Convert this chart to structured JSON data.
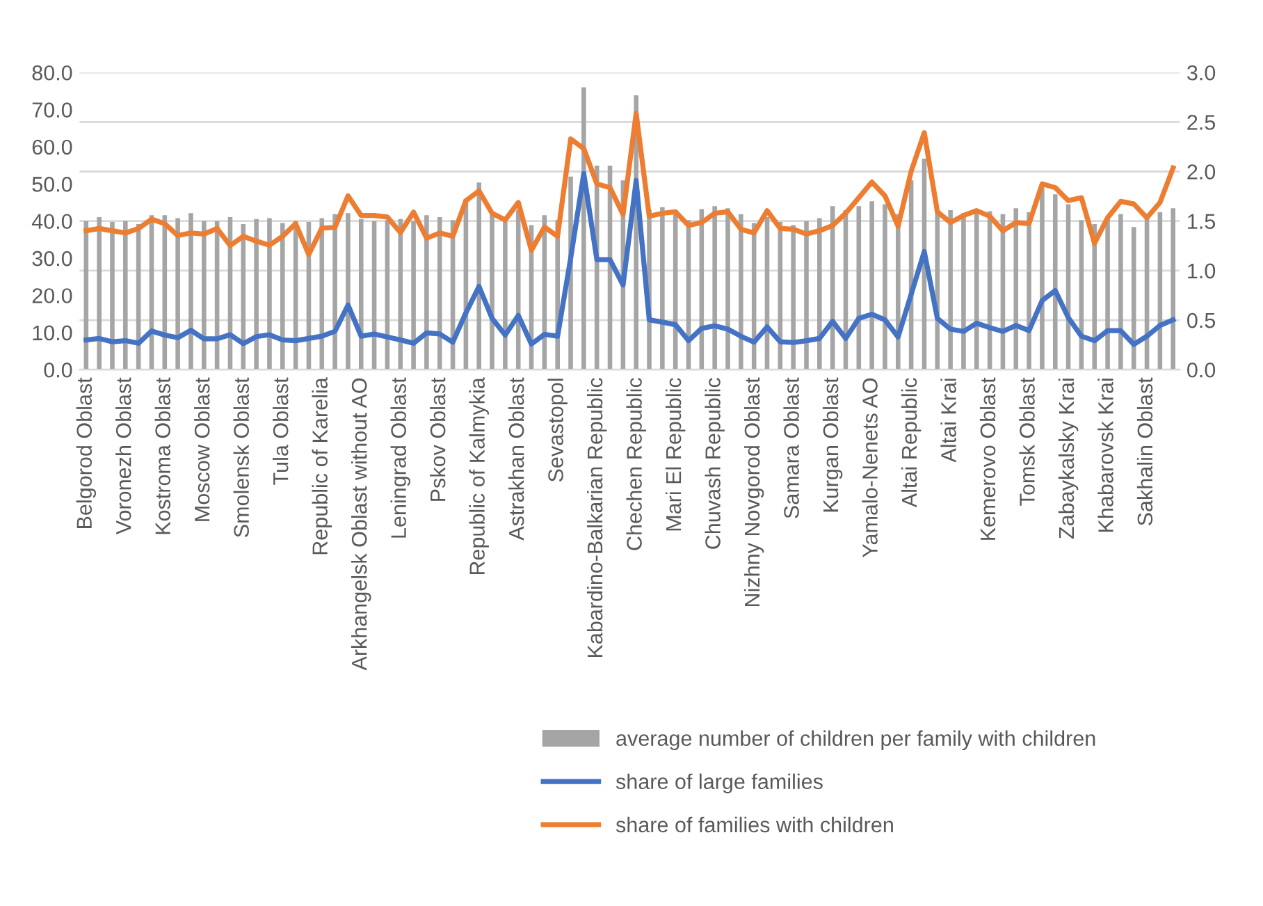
{
  "chart_data": {
    "type": "bar",
    "categories": [
      "Belgorod Oblast",
      null,
      null,
      "Voronezh Oblast",
      null,
      null,
      "Kostroma Oblast",
      null,
      null,
      "Moscow Oblast",
      null,
      null,
      "Smolensk Oblast",
      null,
      null,
      "Tula Oblast",
      null,
      null,
      "Republic of Karelia",
      null,
      null,
      "Arkhangelsk Oblast without AO",
      null,
      null,
      "Leningrad Oblast",
      null,
      null,
      "Pskov Oblast",
      null,
      null,
      "Republic of Kalmykia",
      null,
      null,
      "Astrakhan Oblast",
      null,
      null,
      "Sevastopol",
      null,
      null,
      "Kabardino-Balkarian Republic",
      null,
      null,
      "Chechen Republic",
      null,
      null,
      "Mari El Republic",
      null,
      null,
      "Chuvash Republic",
      null,
      null,
      "Nizhny Novgorod Oblast",
      null,
      null,
      "Samara Oblast",
      null,
      null,
      "Kurgan Oblast",
      null,
      null,
      "Yamalo-Nenets AO",
      null,
      null,
      "Altai Republic",
      null,
      null,
      "Altai Krai",
      null,
      null,
      "Kemerovo Oblast",
      null,
      null,
      "Tomsk Oblast",
      null,
      null,
      "Zabaykalsky Krai",
      null,
      null,
      "Khabarovsk Krai",
      null,
      null,
      "Sakhalin Oblast",
      null,
      null
    ],
    "series": [
      {
        "name": "average number of children per family with children",
        "axis": "y2",
        "color": "#a5a5a5",
        "values": [
          1.5,
          1.54,
          1.49,
          1.5,
          1.47,
          1.56,
          1.56,
          1.53,
          1.58,
          1.5,
          1.5,
          1.54,
          1.47,
          1.52,
          1.53,
          1.48,
          1.5,
          1.49,
          1.53,
          1.57,
          1.58,
          1.52,
          1.5,
          1.51,
          1.52,
          1.5,
          1.56,
          1.54,
          1.51,
          1.72,
          1.89,
          1.59,
          1.49,
          1.61,
          1.46,
          1.56,
          1.51,
          1.95,
          2.85,
          2.06,
          2.06,
          1.91,
          2.77,
          1.61,
          1.64,
          1.61,
          1.51,
          1.62,
          1.65,
          1.63,
          1.57,
          1.48,
          1.54,
          1.49,
          1.46,
          1.5,
          1.53,
          1.65,
          1.61,
          1.65,
          1.7,
          1.67,
          1.57,
          1.91,
          2.13,
          1.61,
          1.61,
          1.58,
          1.58,
          1.6,
          1.57,
          1.63,
          1.59,
          1.84,
          1.77,
          1.67,
          1.51,
          1.47,
          1.54,
          1.57,
          1.44,
          1.53,
          1.59,
          1.63
        ]
      },
      {
        "name": "share of large families",
        "type": "line",
        "color": "#4472c4",
        "values": [
          8.0,
          8.4,
          7.5,
          7.8,
          7.1,
          10.4,
          9.3,
          8.6,
          10.6,
          8.3,
          8.3,
          9.4,
          7.0,
          8.9,
          9.4,
          8.0,
          7.8,
          8.4,
          9.0,
          10.3,
          17.4,
          9.0,
          9.6,
          8.8,
          8.0,
          7.1,
          9.9,
          9.6,
          7.4,
          15.3,
          22.4,
          13.8,
          9.3,
          14.6,
          6.9,
          9.5,
          9.0,
          30.0,
          52.8,
          29.6,
          29.6,
          22.8,
          50.9,
          13.4,
          12.8,
          12.1,
          7.8,
          11.1,
          11.8,
          10.9,
          9.0,
          7.4,
          11.5,
          7.5,
          7.3,
          7.8,
          8.4,
          13.0,
          8.4,
          13.8,
          14.9,
          13.4,
          8.8,
          20.3,
          31.8,
          13.8,
          10.9,
          10.3,
          12.5,
          11.3,
          10.3,
          11.9,
          10.5,
          18.6,
          21.3,
          14.0,
          9.0,
          7.8,
          10.5,
          10.5,
          6.8,
          9.0,
          11.9,
          13.4
        ]
      },
      {
        "name": "share of families with children",
        "type": "line",
        "color": "#ed7d31",
        "values": [
          37.4,
          38.0,
          37.4,
          36.8,
          38.0,
          40.5,
          39.3,
          36.1,
          36.8,
          36.5,
          38.0,
          33.4,
          35.9,
          34.6,
          33.5,
          35.9,
          39.3,
          31.0,
          38.1,
          38.3,
          46.8,
          41.5,
          41.5,
          41.1,
          36.9,
          42.4,
          35.4,
          36.8,
          35.9,
          45.5,
          48.1,
          42.1,
          40.3,
          45.0,
          32.1,
          38.4,
          35.9,
          62.1,
          59.5,
          50.0,
          49.0,
          41.8,
          69.0,
          41.3,
          42.1,
          42.5,
          38.8,
          39.6,
          42.1,
          42.5,
          37.8,
          36.8,
          42.8,
          38.0,
          37.8,
          36.5,
          37.4,
          38.8,
          42.1,
          46.3,
          50.5,
          46.8,
          38.6,
          53.4,
          63.8,
          42.5,
          39.6,
          41.5,
          42.8,
          41.3,
          37.4,
          39.6,
          39.3,
          50.0,
          49.0,
          45.5,
          46.3,
          34.0,
          40.9,
          45.3,
          44.6,
          40.9,
          45.0,
          54.3
        ]
      }
    ],
    "ylim": [
      0,
      80
    ],
    "yticks": [
      {
        "value": 0,
        "label": "0.0"
      },
      {
        "value": 10,
        "label": "10.0"
      },
      {
        "value": 20,
        "label": "20.0"
      },
      {
        "value": 30,
        "label": "30.0"
      },
      {
        "value": 40,
        "label": "40.0"
      },
      {
        "value": 50,
        "label": "50.0"
      },
      {
        "value": 60,
        "label": "60.0"
      },
      {
        "value": 70,
        "label": "70.0"
      },
      {
        "value": 80,
        "label": "80.0"
      }
    ],
    "y2lim": [
      0,
      3
    ],
    "y2ticks": [
      {
        "value": 0,
        "label": "0.0"
      },
      {
        "value": 0.5,
        "label": "0.5"
      },
      {
        "value": 1,
        "label": "1.0"
      },
      {
        "value": 1.5,
        "label": "1.5"
      },
      {
        "value": 2,
        "label": "2.0"
      },
      {
        "value": 2.5,
        "label": "2.5"
      },
      {
        "value": 3,
        "label": "3.0"
      }
    ],
    "grid": "y",
    "legend": "bottom",
    "line_style": "solid"
  }
}
